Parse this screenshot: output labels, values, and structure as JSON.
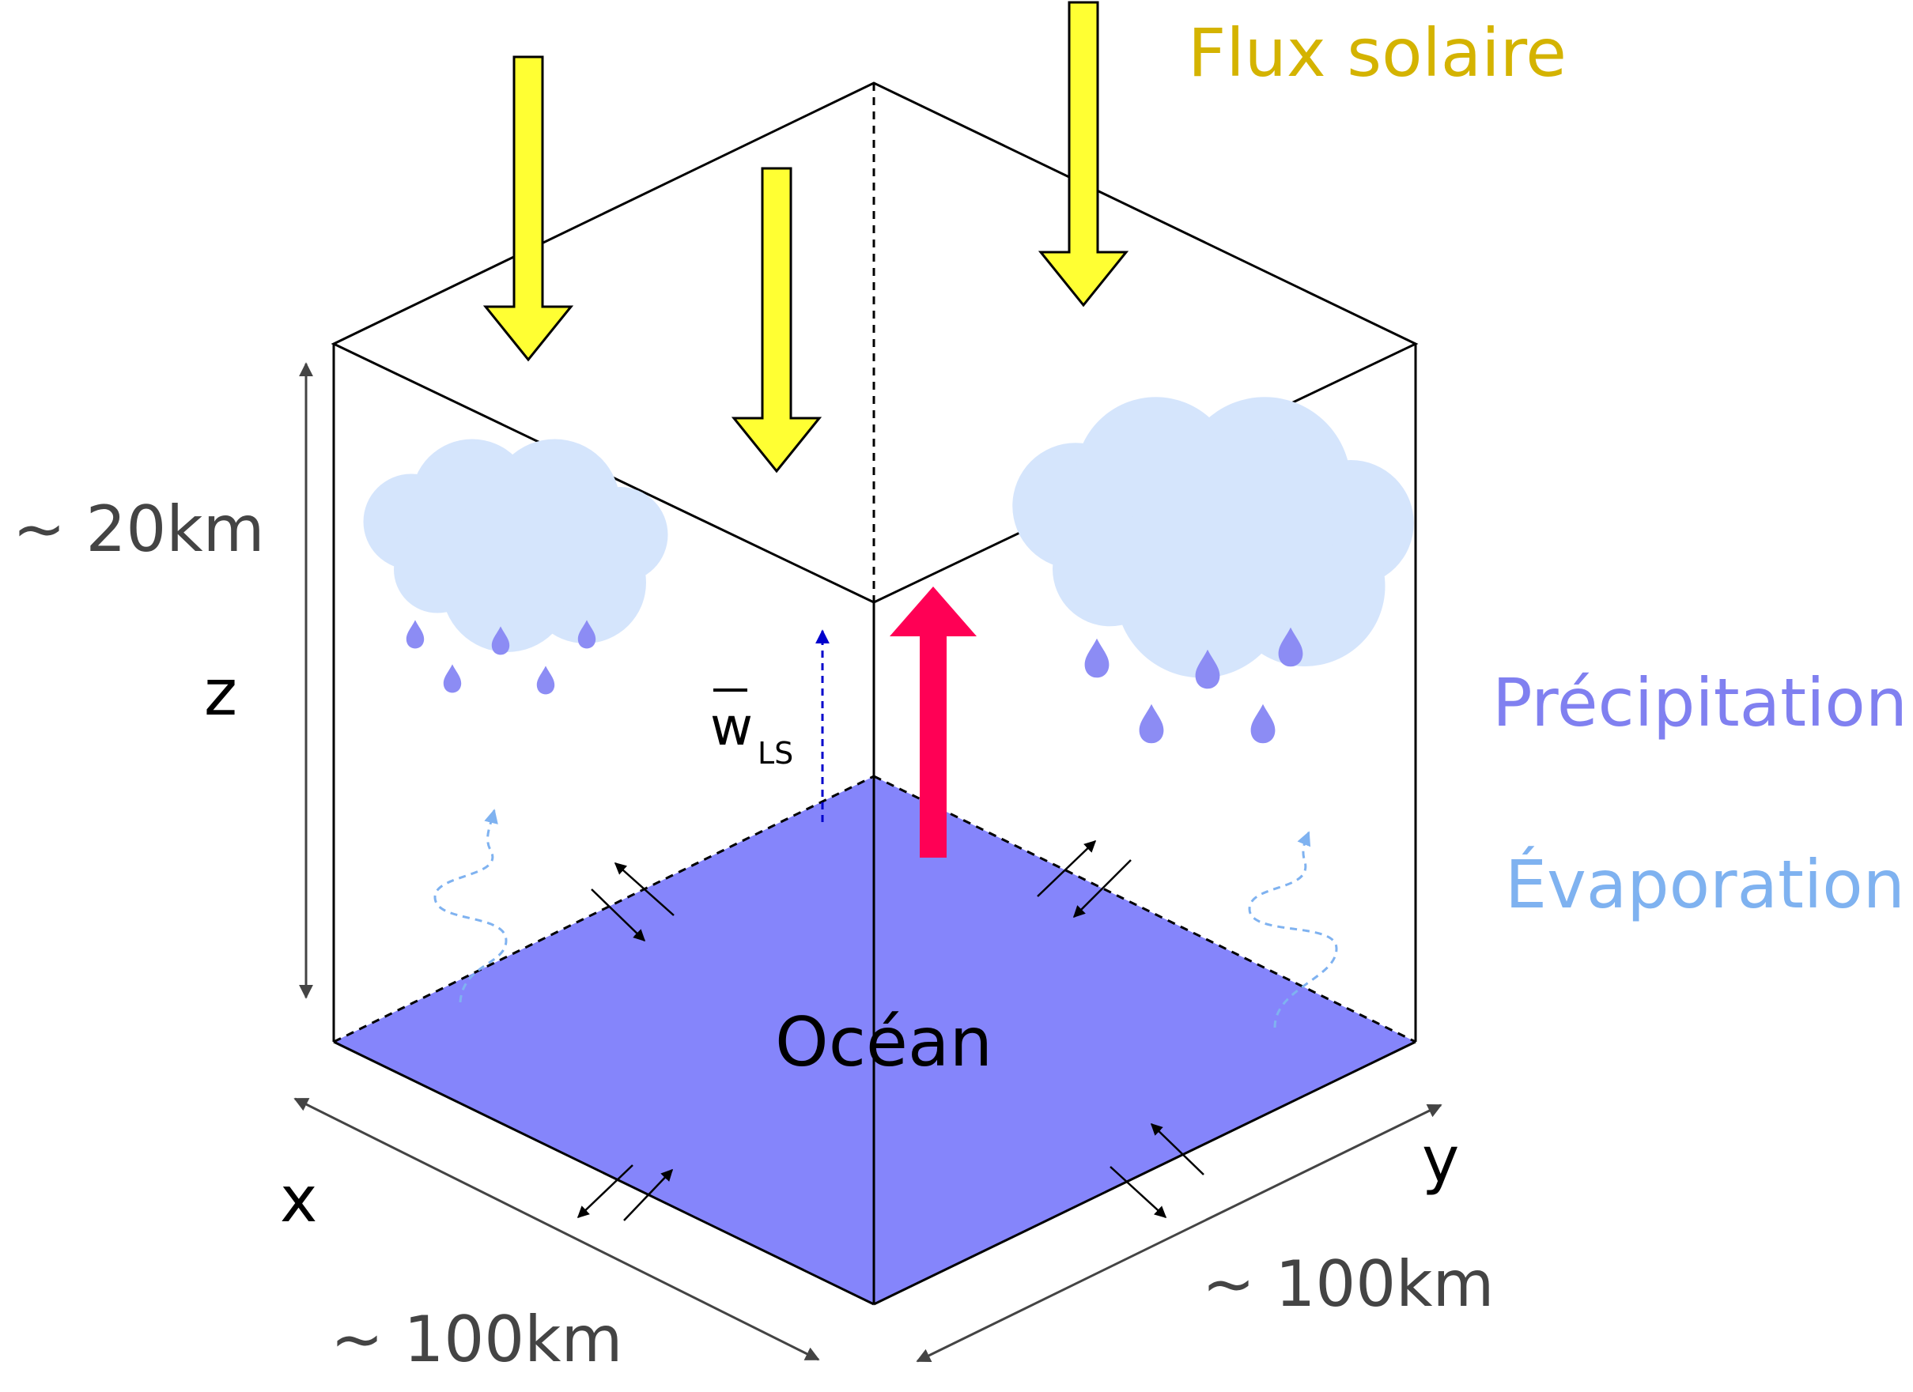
{
  "labels": {
    "flux_solaire": "Flux solaire",
    "precipitation": "Précipitation",
    "evaporation": "Évaporation",
    "ocean": "Océan",
    "height_dim": "~ 20km",
    "z_axis": "z",
    "x_axis": "x",
    "y_axis": "y",
    "x_dim": "~ 100km",
    "y_dim": "~ 100km",
    "w_ls_main": "w",
    "w_ls_sub": "LS"
  },
  "colors": {
    "solar": "#ffff33",
    "solar_text": "#d4b300",
    "precip_text": "#8080f0",
    "evap_text": "#7fb2f0",
    "ocean": "#8585fb",
    "cloud": "#d5e5fc",
    "drop": "#8c8cf4",
    "heat_arrow": "#ff0055",
    "w_ls_arrow": "#0000cc",
    "evap_path": "#7fb2f0",
    "dim_line": "#444444",
    "edge": "#000000"
  }
}
